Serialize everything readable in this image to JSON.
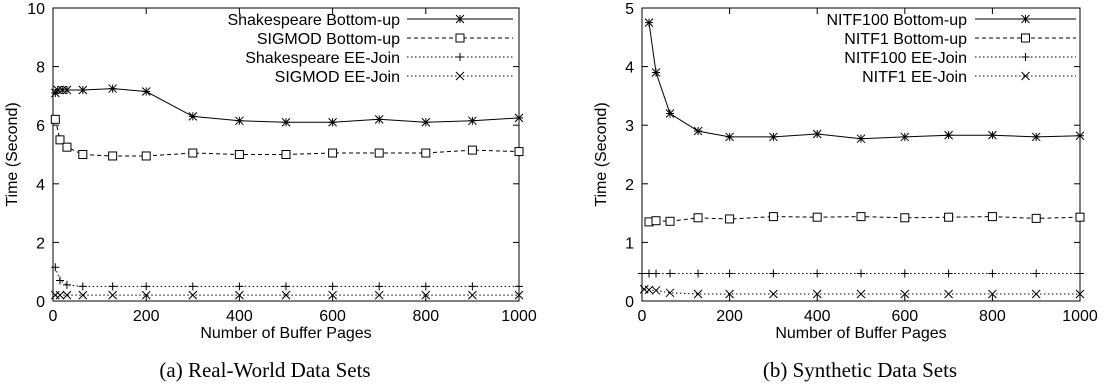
{
  "captions": [
    "(a) Real-World Data Sets",
    "(b) Synthetic Data Sets"
  ],
  "chart_data": [
    {
      "type": "line",
      "title": "",
      "caption": "(a) Real-World Data Sets",
      "xlabel": "Number of Buffer Pages",
      "ylabel": "Time (Second)",
      "xlim": [
        0,
        1000
      ],
      "ylim": [
        0,
        10
      ],
      "xticks": [
        0,
        200,
        400,
        600,
        800,
        1000
      ],
      "yticks": [
        0,
        2,
        4,
        6,
        8,
        10
      ],
      "grid": false,
      "legend_position": "top-right",
      "series": [
        {
          "name": "Shakespeare Bottom-up",
          "marker": "star",
          "dash": "solid",
          "x": [
            5,
            10,
            20,
            30,
            64,
            128,
            200,
            300,
            400,
            500,
            600,
            700,
            800,
            900,
            1000
          ],
          "y": [
            7.1,
            7.2,
            7.2,
            7.2,
            7.2,
            7.25,
            7.15,
            6.3,
            6.15,
            6.1,
            6.1,
            6.2,
            6.1,
            6.15,
            6.25
          ]
        },
        {
          "name": "SIGMOD Bottom-up",
          "marker": "square",
          "dash": "dashed",
          "x": [
            5,
            15,
            30,
            64,
            128,
            200,
            300,
            400,
            500,
            600,
            700,
            800,
            900,
            1000
          ],
          "y": [
            6.2,
            5.5,
            5.25,
            5.0,
            4.95,
            4.95,
            5.05,
            5.0,
            5.0,
            5.05,
            5.05,
            5.05,
            5.15,
            5.1
          ]
        },
        {
          "name": "Shakespeare EE-Join",
          "marker": "plus",
          "dash": "dotted",
          "x": [
            5,
            15,
            30,
            64,
            128,
            200,
            300,
            400,
            500,
            600,
            700,
            800,
            900,
            1000
          ],
          "y": [
            1.15,
            0.7,
            0.55,
            0.5,
            0.5,
            0.5,
            0.5,
            0.5,
            0.5,
            0.5,
            0.5,
            0.5,
            0.5,
            0.5
          ]
        },
        {
          "name": "SIGMOD EE-Join",
          "marker": "x",
          "dash": "dotted",
          "x": [
            5,
            15,
            30,
            64,
            128,
            200,
            300,
            400,
            500,
            600,
            700,
            800,
            900,
            1000
          ],
          "y": [
            0.2,
            0.2,
            0.2,
            0.2,
            0.2,
            0.2,
            0.2,
            0.2,
            0.2,
            0.2,
            0.2,
            0.2,
            0.2,
            0.2
          ]
        }
      ]
    },
    {
      "type": "line",
      "title": "",
      "caption": "(b) Synthetic Data Sets",
      "xlabel": "Number of Buffer Pages",
      "ylabel": "Time (Second)",
      "xlim": [
        0,
        1000
      ],
      "ylim": [
        0,
        5
      ],
      "xticks": [
        0,
        200,
        400,
        600,
        800,
        1000
      ],
      "yticks": [
        0,
        1,
        2,
        3,
        4,
        5
      ],
      "grid": false,
      "legend_position": "top-right",
      "series": [
        {
          "name": "NITF100 Bottom-up",
          "marker": "star",
          "dash": "solid",
          "x": [
            16,
            32,
            64,
            128,
            200,
            300,
            400,
            500,
            600,
            700,
            800,
            900,
            1000
          ],
          "y": [
            4.75,
            3.9,
            3.2,
            2.9,
            2.8,
            2.8,
            2.85,
            2.77,
            2.8,
            2.83,
            2.83,
            2.8,
            2.82
          ]
        },
        {
          "name": "NITF1 Bottom-up",
          "marker": "square",
          "dash": "dashed",
          "x": [
            16,
            32,
            64,
            128,
            200,
            300,
            400,
            500,
            600,
            700,
            800,
            900,
            1000
          ],
          "y": [
            1.35,
            1.37,
            1.36,
            1.42,
            1.4,
            1.44,
            1.43,
            1.44,
            1.42,
            1.43,
            1.44,
            1.41,
            1.43
          ]
        },
        {
          "name": "NITF100 EE-Join",
          "marker": "plus",
          "dash": "dotted",
          "x": [
            0,
            16,
            32,
            64,
            128,
            200,
            300,
            400,
            500,
            600,
            700,
            800,
            900,
            1000
          ],
          "y": [
            0.47,
            0.47,
            0.47,
            0.47,
            0.47,
            0.47,
            0.47,
            0.47,
            0.47,
            0.47,
            0.47,
            0.47,
            0.47,
            0.47
          ]
        },
        {
          "name": "NITF1 EE-Join",
          "marker": "x",
          "dash": "dotted",
          "x": [
            5,
            16,
            32,
            64,
            128,
            200,
            300,
            400,
            500,
            600,
            700,
            800,
            900,
            1000
          ],
          "y": [
            0.2,
            0.19,
            0.18,
            0.14,
            0.12,
            0.12,
            0.12,
            0.12,
            0.12,
            0.12,
            0.12,
            0.12,
            0.12,
            0.12
          ]
        }
      ]
    }
  ]
}
